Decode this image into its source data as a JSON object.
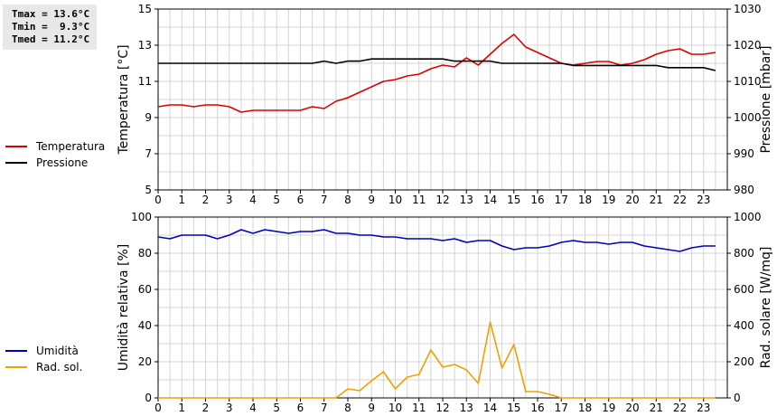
{
  "stats": {
    "tmax": "Tmax = 13.6°C",
    "tmin": "Tmin =  9.3°C",
    "tmed": "Tmed = 11.2°C"
  },
  "legend_top": [
    {
      "label": "Temperatura",
      "color": "#dd0000"
    },
    {
      "label": "Pressione",
      "color": "#000000"
    }
  ],
  "legend_bottom": [
    {
      "label": "Umidità",
      "color": "#0000bb"
    },
    {
      "label": "Rad. sol.",
      "color": "#f0a000"
    }
  ],
  "chart_data": [
    {
      "type": "line",
      "xlim": [
        0,
        24
      ],
      "xticks": [
        "0",
        "1",
        "2",
        "3",
        "4",
        "5",
        "6",
        "7",
        "8",
        "9",
        "10",
        "11",
        "12",
        "13",
        "14",
        "15",
        "16",
        "17",
        "18",
        "19",
        "20",
        "21",
        "22",
        "23"
      ],
      "grid": true,
      "ylabel": "Temperatura [°C]",
      "ylim": [
        5,
        15
      ],
      "yticks": [
        5,
        7,
        9,
        11,
        13,
        15
      ],
      "y2label": "Pressione [mbar]",
      "y2lim": [
        980,
        1030
      ],
      "y2ticks": [
        980,
        990,
        1000,
        1010,
        1020,
        1030
      ],
      "series": [
        {
          "name": "Temperatura",
          "axis": "left",
          "color": "#dd0000",
          "x": [
            0,
            0.5,
            1,
            1.5,
            2,
            2.5,
            3,
            3.5,
            4,
            4.5,
            5,
            5.5,
            6,
            6.5,
            7,
            7.5,
            8,
            8.5,
            9,
            9.5,
            10,
            10.5,
            11,
            11.5,
            12,
            12.5,
            13,
            13.5,
            14,
            14.5,
            15,
            15.5,
            16,
            16.5,
            17,
            17.5,
            18,
            18.5,
            19,
            19.5,
            20,
            20.5,
            21,
            21.5,
            22,
            22.5,
            23,
            23.5
          ],
          "y": [
            9.6,
            9.7,
            9.7,
            9.6,
            9.7,
            9.7,
            9.6,
            9.3,
            9.4,
            9.4,
            9.4,
            9.4,
            9.4,
            9.6,
            9.5,
            9.9,
            10.1,
            10.4,
            10.7,
            11.0,
            11.1,
            11.3,
            11.4,
            11.7,
            11.9,
            11.8,
            12.3,
            11.9,
            12.5,
            13.1,
            13.6,
            12.9,
            12.6,
            12.3,
            12.0,
            11.9,
            12.0,
            12.1,
            12.1,
            11.9,
            12.0,
            12.2,
            12.5,
            12.7,
            12.8,
            12.5,
            12.5,
            12.6
          ]
        },
        {
          "name": "Pressione",
          "axis": "right",
          "color": "#000000",
          "x": [
            0,
            0.5,
            1,
            1.5,
            2,
            2.5,
            3,
            3.5,
            4,
            4.5,
            5,
            5.5,
            6,
            6.5,
            7,
            7.5,
            8,
            8.5,
            9,
            9.5,
            10,
            10.5,
            11,
            11.5,
            12,
            12.5,
            13,
            13.5,
            14,
            14.5,
            15,
            15.5,
            16,
            16.5,
            17,
            17.5,
            18,
            18.5,
            19,
            19.5,
            20,
            20.5,
            21,
            21.5,
            22,
            22.5,
            23,
            23.5
          ],
          "y": [
            1015,
            1015,
            1015,
            1015,
            1015,
            1015,
            1015,
            1015,
            1015,
            1015,
            1015,
            1015,
            1015,
            1015,
            1015.6,
            1015,
            1015.6,
            1015.6,
            1016.2,
            1016.2,
            1016.2,
            1016.2,
            1016.2,
            1016.2,
            1016.2,
            1015.6,
            1015.6,
            1015.6,
            1015.6,
            1015,
            1015,
            1015,
            1015,
            1015,
            1015,
            1014.4,
            1014.4,
            1014.4,
            1014.4,
            1014.4,
            1014.4,
            1014.4,
            1014.4,
            1013.8,
            1013.8,
            1013.8,
            1013.8,
            1013
          ]
        }
      ]
    },
    {
      "type": "line",
      "xlim": [
        0,
        24
      ],
      "xticks": [
        "0",
        "1",
        "2",
        "3",
        "4",
        "5",
        "6",
        "7",
        "8",
        "9",
        "10",
        "11",
        "12",
        "13",
        "14",
        "15",
        "16",
        "17",
        "18",
        "19",
        "20",
        "21",
        "22",
        "23"
      ],
      "grid": true,
      "ylabel": "Umidità relativa [%]",
      "ylim": [
        0,
        100
      ],
      "yticks": [
        0,
        20,
        40,
        60,
        80,
        100
      ],
      "y2label": "Rad. solare [W/mq]",
      "y2lim": [
        0,
        1000
      ],
      "y2ticks": [
        0,
        200,
        400,
        600,
        800,
        1000
      ],
      "series": [
        {
          "name": "Umidità",
          "axis": "left",
          "color": "#0000bb",
          "x": [
            0,
            0.5,
            1,
            1.5,
            2,
            2.5,
            3,
            3.5,
            4,
            4.5,
            5,
            5.5,
            6,
            6.5,
            7,
            7.5,
            8,
            8.5,
            9,
            9.5,
            10,
            10.5,
            11,
            11.5,
            12,
            12.5,
            13,
            13.5,
            14,
            14.5,
            15,
            15.5,
            16,
            16.5,
            17,
            17.5,
            18,
            18.5,
            19,
            19.5,
            20,
            20.5,
            21,
            21.5,
            22,
            22.5,
            23,
            23.5
          ],
          "y": [
            89,
            88,
            90,
            90,
            90,
            88,
            90,
            93,
            91,
            93,
            92,
            91,
            92,
            92,
            93,
            91,
            91,
            90,
            90,
            89,
            89,
            88,
            88,
            88,
            87,
            88,
            86,
            87,
            87,
            84,
            82,
            83,
            83,
            84,
            86,
            87,
            86,
            86,
            85,
            86,
            86,
            84,
            83,
            82,
            81,
            83,
            84,
            84
          ]
        },
        {
          "name": "Rad. sol.",
          "axis": "right",
          "color": "#f0a000",
          "x": [
            0,
            1,
            2,
            3,
            4,
            5,
            6,
            7,
            7.5,
            8,
            8.5,
            9,
            9.5,
            10,
            10.5,
            11,
            11.5,
            12,
            12.5,
            13,
            13.5,
            14,
            14.5,
            15,
            15.5,
            16,
            16.5,
            17,
            18,
            19,
            20,
            21,
            22,
            23,
            23.5
          ],
          "y": [
            0,
            0,
            0,
            0,
            0,
            0,
            0,
            0,
            0,
            50,
            40,
            95,
            145,
            50,
            115,
            130,
            265,
            170,
            185,
            155,
            80,
            420,
            165,
            295,
            35,
            35,
            20,
            0,
            0,
            0,
            0,
            0,
            0,
            0,
            0
          ]
        }
      ]
    }
  ]
}
